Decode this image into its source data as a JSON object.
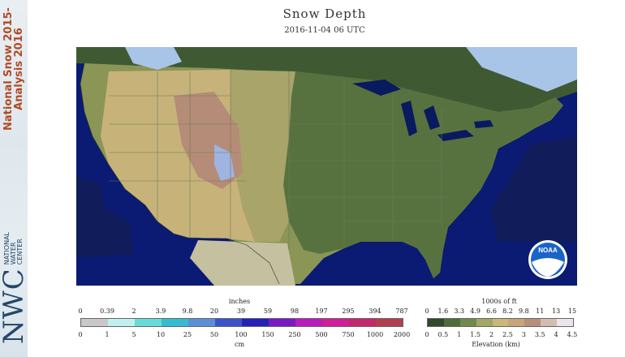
{
  "sidebar": {
    "title_line1": "National Snow 2015-",
    "title_line2": "Analysis 2016",
    "logo_abbr": "NWC",
    "logo_words": [
      "NATIONAL",
      "WATER",
      "CENTER"
    ]
  },
  "header": {
    "title": "Snow Depth",
    "timestamp": "2016-11-04 06 UTC"
  },
  "noaa_logo_text": "NOAA",
  "snow_legend": {
    "top_unit": "inches",
    "bottom_unit": "cm",
    "inches_labels": [
      "0",
      "0.39",
      "2",
      "3.9",
      "9.8",
      "20",
      "39",
      "59",
      "98",
      "197",
      "295",
      "394",
      "787"
    ],
    "cm_labels": [
      "0",
      "1",
      "5",
      "10",
      "25",
      "50",
      "100",
      "150",
      "250",
      "500",
      "750",
      "1000",
      "2000"
    ],
    "colors": [
      "#c8c8c8",
      "#bff0ee",
      "#66dcd8",
      "#34bcd2",
      "#5c8ed6",
      "#3c52c8",
      "#2222b8",
      "#7a18c4",
      "#b81cbc",
      "#d21e98",
      "#c4286a",
      "#b04050"
    ]
  },
  "elevation_legend": {
    "top_unit": "1000s of ft",
    "bottom_unit": "Elevation (km)",
    "ft_labels": [
      "0",
      "1.6",
      "3.3",
      "4.9",
      "6.6",
      "8.2",
      "9.8",
      "11",
      "13",
      "15"
    ],
    "km_labels": [
      "0",
      "0.5",
      "1",
      "1.5",
      "2",
      "2.5",
      "3",
      "3.5",
      "4",
      "4.5"
    ],
    "colors": [
      "#2f4a2b",
      "#4f6c38",
      "#6f8a4c",
      "#a4a668",
      "#c9b877",
      "#c7a57a",
      "#b78f78",
      "#d2bdb1",
      "#ece4ec"
    ]
  },
  "map_colors": {
    "ocean": "#0b1a72",
    "deep_ocean": "#101d5a",
    "canada": "#3f5a32",
    "lowland": "#58723f",
    "midland": "#8a9556",
    "plains": "#a8a46a",
    "highland": "#c7b37a",
    "mountain": "#b58c77",
    "snow": "#a8c4e6",
    "lake": "#0a1a5e",
    "border": "#6b7a5a"
  }
}
